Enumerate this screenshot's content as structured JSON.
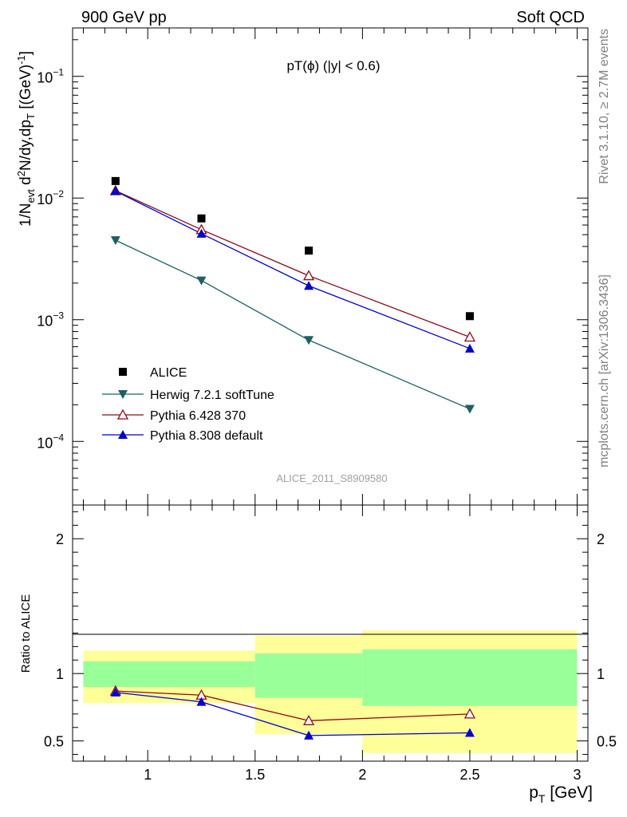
{
  "header": {
    "left": "900 GeV pp",
    "right": "Soft QCD"
  },
  "side": {
    "rivet": "Rivet 3.1.10, ≥ 2.7M events",
    "mcplots": "mcplots.cern.ch [arXiv:1306.3436]"
  },
  "colors": {
    "herwig": "#1f5f63",
    "pythia6": "#8b0a1c",
    "pythia8": "#0000cc",
    "band_stat": "#99ff99",
    "band_total": "#ffff99"
  },
  "chart_data": [
    {
      "type": "scatter",
      "panel": "main",
      "title": "pT(ϕ) (|y| < 0.6)",
      "watermark": "ALICE_2011_S8909580",
      "ylabel": "1/N_evt d²N/dy,dp_T [(GeV)⁻¹]",
      "yscale": "log",
      "ylim": [
        3e-05,
        0.25
      ],
      "xlim": [
        0.65,
        3.05
      ],
      "yticks": [
        {
          "value": 0.1,
          "base": "10",
          "exp": "−1"
        },
        {
          "value": 0.01,
          "base": "10",
          "exp": "−2"
        },
        {
          "value": 0.001,
          "base": "10",
          "exp": "−3"
        },
        {
          "value": 0.0001,
          "base": "10",
          "exp": "−4"
        }
      ],
      "x": [
        0.85,
        1.25,
        1.75,
        2.5
      ],
      "series": [
        {
          "name": "ALICE",
          "marker": "square",
          "values": [
            0.0138,
            0.0068,
            0.0037,
            0.00107
          ]
        },
        {
          "name": "Herwig 7.2.1 softTune",
          "marker": "triangle-down",
          "values": [
            0.0045,
            0.0021,
            0.00068,
            0.000185
          ]
        },
        {
          "name": "Pythia 6.428 370",
          "marker": "triangle-up-open",
          "values": [
            0.0115,
            0.0055,
            0.0023,
            0.00072
          ]
        },
        {
          "name": "Pythia 8.308 default",
          "marker": "triangle-up",
          "values": [
            0.0114,
            0.0051,
            0.0019,
            0.00058
          ]
        }
      ],
      "legend": "bottom-left"
    },
    {
      "type": "line",
      "panel": "ratio",
      "ylabel": "Ratio to ALICE",
      "xlabel": "p_T [GeV]",
      "ylim": [
        0.35,
        2.25
      ],
      "xlim": [
        0.65,
        3.05
      ],
      "xticks": [
        "1",
        "1.5",
        "2",
        "2.5",
        "3"
      ],
      "yticks": [
        "0.5",
        "1",
        "2"
      ],
      "bands": [
        {
          "x_range": [
            0.7,
            1.5
          ],
          "stat": [
            0.9,
            1.09
          ],
          "total": [
            0.78,
            1.17
          ]
        },
        {
          "x_range": [
            1.5,
            2.0
          ],
          "stat": [
            0.82,
            1.15
          ],
          "total": [
            0.55,
            1.28
          ]
        },
        {
          "x_range": [
            2.0,
            3.0
          ],
          "stat": [
            0.76,
            1.18
          ],
          "total": [
            0.41,
            1.32
          ]
        }
      ],
      "x": [
        0.85,
        1.25,
        1.75,
        2.5
      ],
      "series": [
        {
          "name": "Pythia 6.428 370",
          "values": [
            0.87,
            0.84,
            0.65,
            0.7
          ]
        },
        {
          "name": "Pythia 8.308 default",
          "values": [
            0.86,
            0.79,
            0.54,
            0.56
          ]
        }
      ]
    }
  ]
}
